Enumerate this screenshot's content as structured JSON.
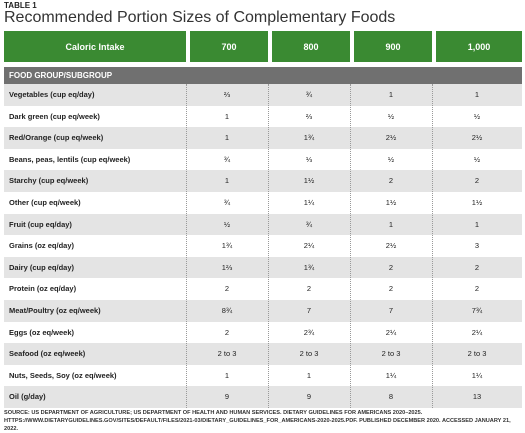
{
  "header": {
    "label": "TABLE 1",
    "title": "Recommended Portion Sizes of Complementary Foods"
  },
  "table": {
    "columns": [
      "Caloric Intake",
      "700",
      "800",
      "900",
      "1,000"
    ],
    "section": "FOOD GROUP/SUBGROUP",
    "rows": [
      [
        "Vegetables (cup eq/day)",
        "⅔",
        "¾",
        "1",
        "1"
      ],
      [
        "Dark green (cup eq/week)",
        "1",
        "⅔",
        "½",
        "½"
      ],
      [
        "Red/Orange (cup eq/week)",
        "1",
        "1¾",
        "2½",
        "2½"
      ],
      [
        "Beans, peas, lentils (cup eq/week)",
        "¾",
        "⅓",
        "½",
        "½"
      ],
      [
        "Starchy (cup eq/week)",
        "1",
        "1½",
        "2",
        "2"
      ],
      [
        "Other (cup eq/week)",
        "¾",
        "1¼",
        "1½",
        "1½"
      ],
      [
        "Fruit (cup eq/day)",
        "½",
        "¾",
        "1",
        "1"
      ],
      [
        "Grains (oz eq/day)",
        "1¾",
        "2¼",
        "2½",
        "3"
      ],
      [
        "Dairy (cup eq/day)",
        "1⅔",
        "1¾",
        "2",
        "2"
      ],
      [
        "Protein (oz eq/day)",
        "2",
        "2",
        "2",
        "2"
      ],
      [
        "Meat/Poultry (oz eq/week)",
        "8¾",
        "7",
        "7",
        "7¾"
      ],
      [
        "Eggs (oz eq/week)",
        "2",
        "2¾",
        "2¼",
        "2¼"
      ],
      [
        "Seafood (oz eq/week)",
        "2 to 3",
        "2 to 3",
        "2 to 3",
        "2 to 3"
      ],
      [
        "Nuts, Seeds, Soy (oz eq/week)",
        "1",
        "1",
        "1¼",
        "1¼"
      ],
      [
        "Oil (g/day)",
        "9",
        "9",
        "8",
        "13"
      ]
    ]
  },
  "source": "SOURCE: US DEPARTMENT OF AGRICULTURE; US DEPARTMENT OF HEALTH AND HUMAN SERVICES. DIETARY GUIDELINES FOR AMERICANS 2020–2025. HTTPS://WWW.DIETARYGUIDELINES.GOV/SITES/DEFAULT/FILES/2021-03/DIETARY_GUIDELINES_FOR_AMERICANS-2020-2025.PDF. PUBLISHED DECEMBER 2020. ACCESSED JANUARY 21, 2022."
}
